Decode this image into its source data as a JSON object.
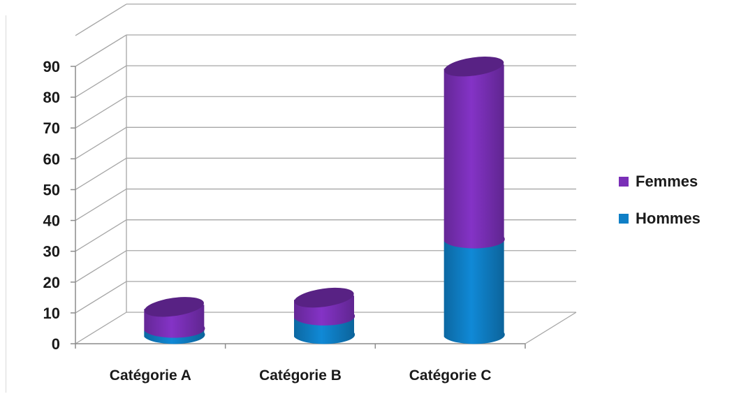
{
  "chart_data": {
    "type": "bar",
    "stacked": true,
    "style": "3d-cylinder",
    "categories": [
      "Catégorie A",
      "Catégorie B",
      "Catégorie C"
    ],
    "series": [
      {
        "name": "Hommes",
        "values": [
          2,
          6,
          31
        ],
        "color": "#0f7fc6"
      },
      {
        "name": "Femmes",
        "values": [
          7,
          6,
          56
        ],
        "color": "#7a2fb7"
      }
    ],
    "legend_order": [
      "Femmes",
      "Hommes"
    ],
    "ylim": [
      0,
      90
    ],
    "yticks": [
      0,
      10,
      20,
      30,
      40,
      50,
      60,
      70,
      80,
      90
    ],
    "grid": true,
    "legend_position": "right",
    "title": "",
    "xlabel": "",
    "ylabel": ""
  }
}
